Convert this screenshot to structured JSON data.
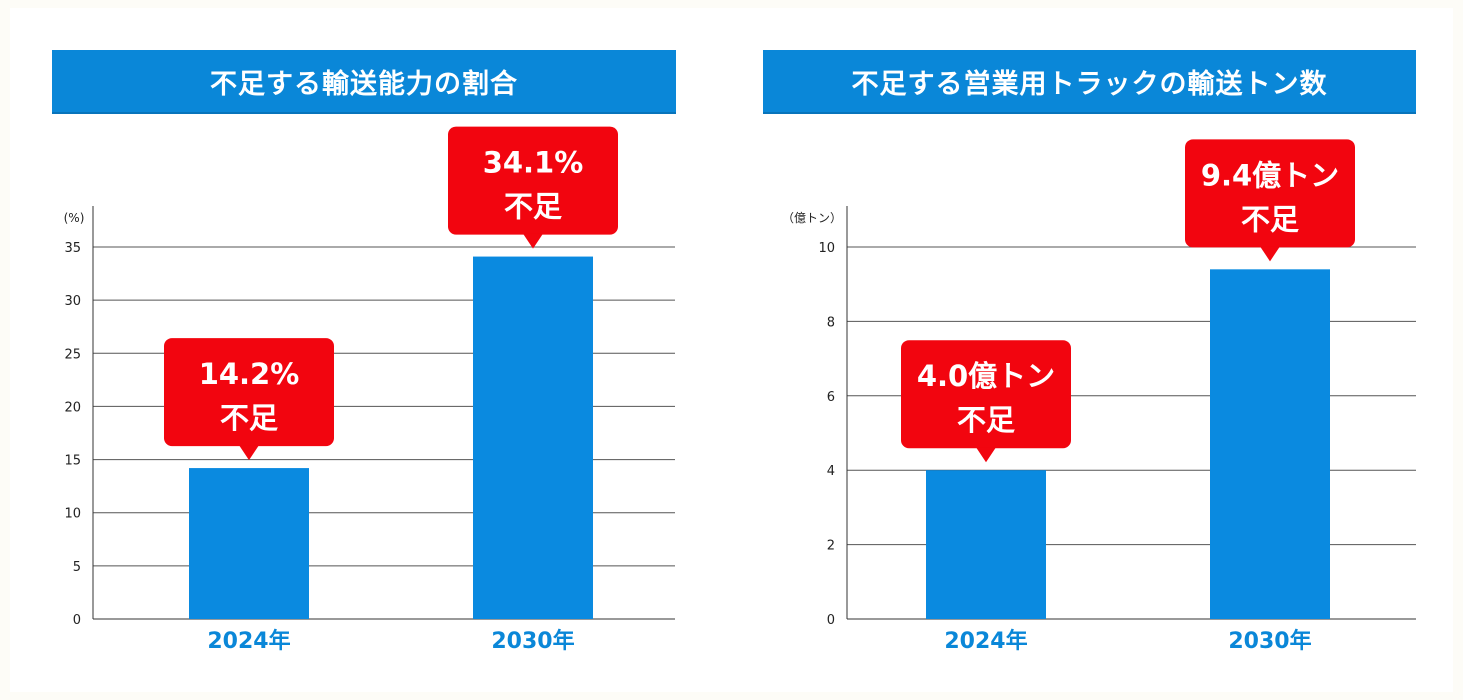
{
  "colors": {
    "bar": "#0a8ae0",
    "banner": "#0a87d8",
    "callout": "#f2050f",
    "category": "#0a87d8",
    "grid": "#555555"
  },
  "chart_data": [
    {
      "type": "bar",
      "title": "不足する輸送能力の割合",
      "unit_label": "(%)",
      "categories": [
        "2024年",
        "2030年"
      ],
      "values": [
        14.2,
        34.1
      ],
      "ylim": [
        0,
        35
      ],
      "yticks": [
        0,
        5,
        10,
        15,
        20,
        25,
        30,
        35
      ],
      "grid": true,
      "callouts": [
        {
          "line1": "14.2%",
          "line2": "不足"
        },
        {
          "line1": "34.1%",
          "line2": "不足"
        }
      ]
    },
    {
      "type": "bar",
      "title": "不足する営業用トラックの輸送トン数",
      "unit_label": "（億トン）",
      "categories": [
        "2024年",
        "2030年"
      ],
      "values": [
        4.0,
        9.4
      ],
      "ylim": [
        0,
        10
      ],
      "yticks": [
        0,
        2,
        4,
        6,
        8,
        10
      ],
      "grid": true,
      "callouts": [
        {
          "line1": "4.0億トン",
          "line2": "不足"
        },
        {
          "line1": "9.4億トン",
          "line2": "不足"
        }
      ]
    }
  ]
}
